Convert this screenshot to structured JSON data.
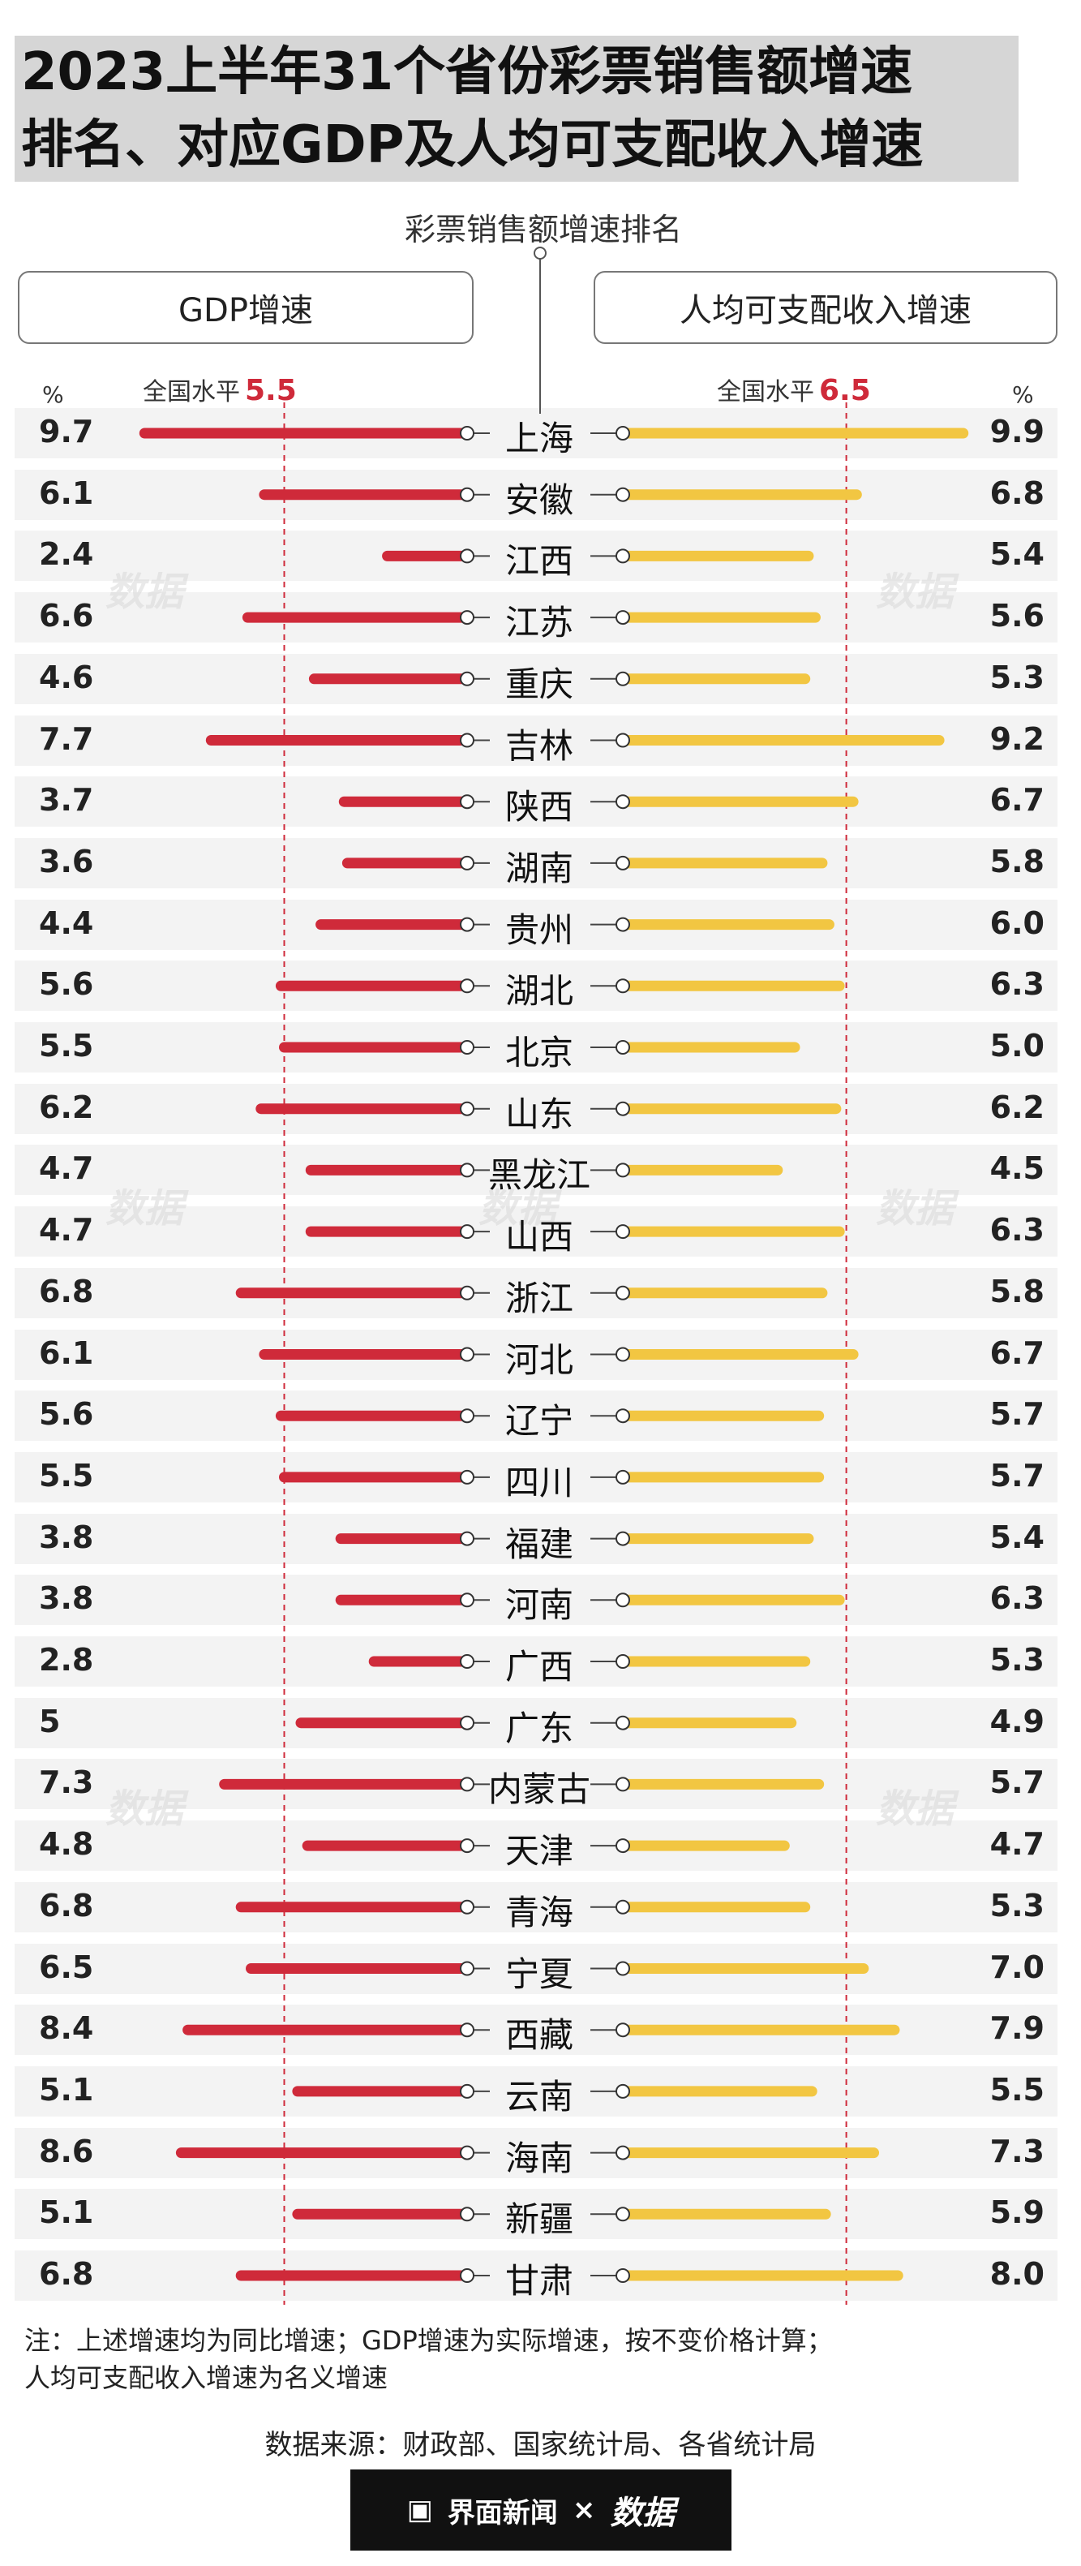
{
  "title": {
    "line1": "2023上半年31个省份彩票销售额增速",
    "line2": "排名、对应GDP及人均可支配收入增速"
  },
  "subhead": "彩票销售额增速排名",
  "left_header": "GDP增速",
  "right_header": "人均可支配收入增速",
  "unit": "%",
  "national": {
    "label": "全国水平",
    "gdp": 5.5,
    "income": 6.5
  },
  "watermark": "数据",
  "chart_data": {
    "type": "bar",
    "title": "2023上半年31个省份彩票销售额增速排名、对应GDP及人均可支配收入增速",
    "categories": [
      "上海",
      "安徽",
      "江西",
      "江苏",
      "重庆",
      "吉林",
      "陕西",
      "湖南",
      "贵州",
      "湖北",
      "北京",
      "山东",
      "黑龙江",
      "山西",
      "浙江",
      "河北",
      "辽宁",
      "四川",
      "福建",
      "河南",
      "广西",
      "广东",
      "内蒙古",
      "天津",
      "青海",
      "宁夏",
      "西藏",
      "云南",
      "海南",
      "新疆",
      "甘肃"
    ],
    "series": [
      {
        "name": "GDP增速",
        "color": "#cf2a3a",
        "labels": [
          "9.7",
          "6.1",
          "2.4",
          "6.6",
          "4.6",
          "7.7",
          "3.7",
          "3.6",
          "4.4",
          "5.6",
          "5.5",
          "6.2",
          "4.7",
          "4.7",
          "6.8",
          "6.1",
          "5.6",
          "5.5",
          "3.8",
          "3.8",
          "2.8",
          "5",
          "7.3",
          "4.8",
          "6.8",
          "6.5",
          "8.4",
          "5.1",
          "8.6",
          "5.1",
          "6.8"
        ],
        "values": [
          9.7,
          6.1,
          2.4,
          6.6,
          4.6,
          7.7,
          3.7,
          3.6,
          4.4,
          5.6,
          5.5,
          6.2,
          4.7,
          4.7,
          6.8,
          6.1,
          5.6,
          5.5,
          3.8,
          3.8,
          2.8,
          5,
          7.3,
          4.8,
          6.8,
          6.5,
          8.4,
          5.1,
          8.6,
          5.1,
          6.8
        ]
      },
      {
        "name": "人均可支配收入增速",
        "color": "#f2c642",
        "labels": [
          "9.9",
          "6.8",
          "5.4",
          "5.6",
          "5.3",
          "9.2",
          "6.7",
          "5.8",
          "6.0",
          "6.3",
          "5.0",
          "6.2",
          "4.5",
          "6.3",
          "5.8",
          "6.7",
          "5.7",
          "5.7",
          "5.4",
          "6.3",
          "5.3",
          "4.9",
          "5.7",
          "4.7",
          "5.3",
          "7.0",
          "7.9",
          "5.5",
          "7.3",
          "5.9",
          "8.0"
        ],
        "values": [
          9.9,
          6.8,
          5.4,
          5.6,
          5.3,
          9.2,
          6.7,
          5.8,
          6.0,
          6.3,
          5.0,
          6.2,
          4.5,
          6.3,
          5.8,
          6.7,
          5.7,
          5.7,
          5.4,
          6.3,
          5.3,
          4.9,
          5.7,
          4.7,
          5.3,
          7.0,
          7.9,
          5.5,
          7.3,
          5.9,
          8.0
        ]
      }
    ],
    "xlabel": "",
    "ylabel": "%",
    "reference_lines": {
      "GDP增速": 5.5,
      "人均可支配收入增速": 6.5
    }
  },
  "notes": {
    "line1": "注：上述增速均为同比增速；GDP增速为实际增速，按不变价格计算；",
    "line2": "人均可支配收入增速为名义增速"
  },
  "source": "数据来源：财政部、国家统计局、各省统计局",
  "footer": {
    "brand1": "界面新闻",
    "sep": "×",
    "brand2": "数据"
  },
  "colors": {
    "gdp": "#cf2a3a",
    "income": "#f2c642",
    "title_bg": "#d6d6d6"
  }
}
